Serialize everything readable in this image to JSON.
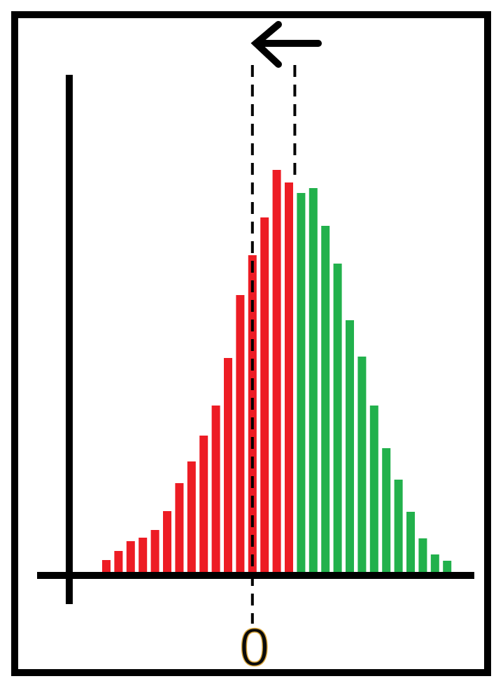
{
  "chart_data": {
    "type": "bar",
    "title": "",
    "xlabel": "",
    "ylabel": "",
    "tick_labels": [
      "0"
    ],
    "grid": false,
    "legend": "none",
    "colors": {
      "left_of_peak": "#ed1c24",
      "right_of_peak": "#22b14c",
      "axes": "#000000",
      "frame": "#000000",
      "zero_label": "#0a0a0a"
    },
    "series": [
      {
        "values": [
          17,
          30,
          44,
          49,
          60,
          87,
          127,
          158,
          195,
          238,
          306,
          396,
          453,
          507,
          575,
          557,
          542,
          549,
          495,
          441,
          360,
          308,
          238,
          177,
          132,
          86,
          48,
          25,
          16
        ],
        "colors": [
          "left_of_peak",
          "left_of_peak",
          "left_of_peak",
          "left_of_peak",
          "left_of_peak",
          "left_of_peak",
          "left_of_peak",
          "left_of_peak",
          "left_of_peak",
          "left_of_peak",
          "left_of_peak",
          "left_of_peak",
          "left_of_peak",
          "left_of_peak",
          "left_of_peak",
          "left_of_peak",
          "right_of_peak",
          "right_of_peak",
          "right_of_peak",
          "right_of_peak",
          "right_of_peak",
          "right_of_peak",
          "right_of_peak",
          "right_of_peak",
          "right_of_peak",
          "right_of_peak",
          "right_of_peak",
          "right_of_peak",
          "right_of_peak"
        ]
      }
    ],
    "zero_bin_index": 12,
    "reference_bin_index": 16,
    "annotations": {
      "arrow": "left",
      "dashed_lines": [
        "zero",
        "reference"
      ]
    }
  }
}
